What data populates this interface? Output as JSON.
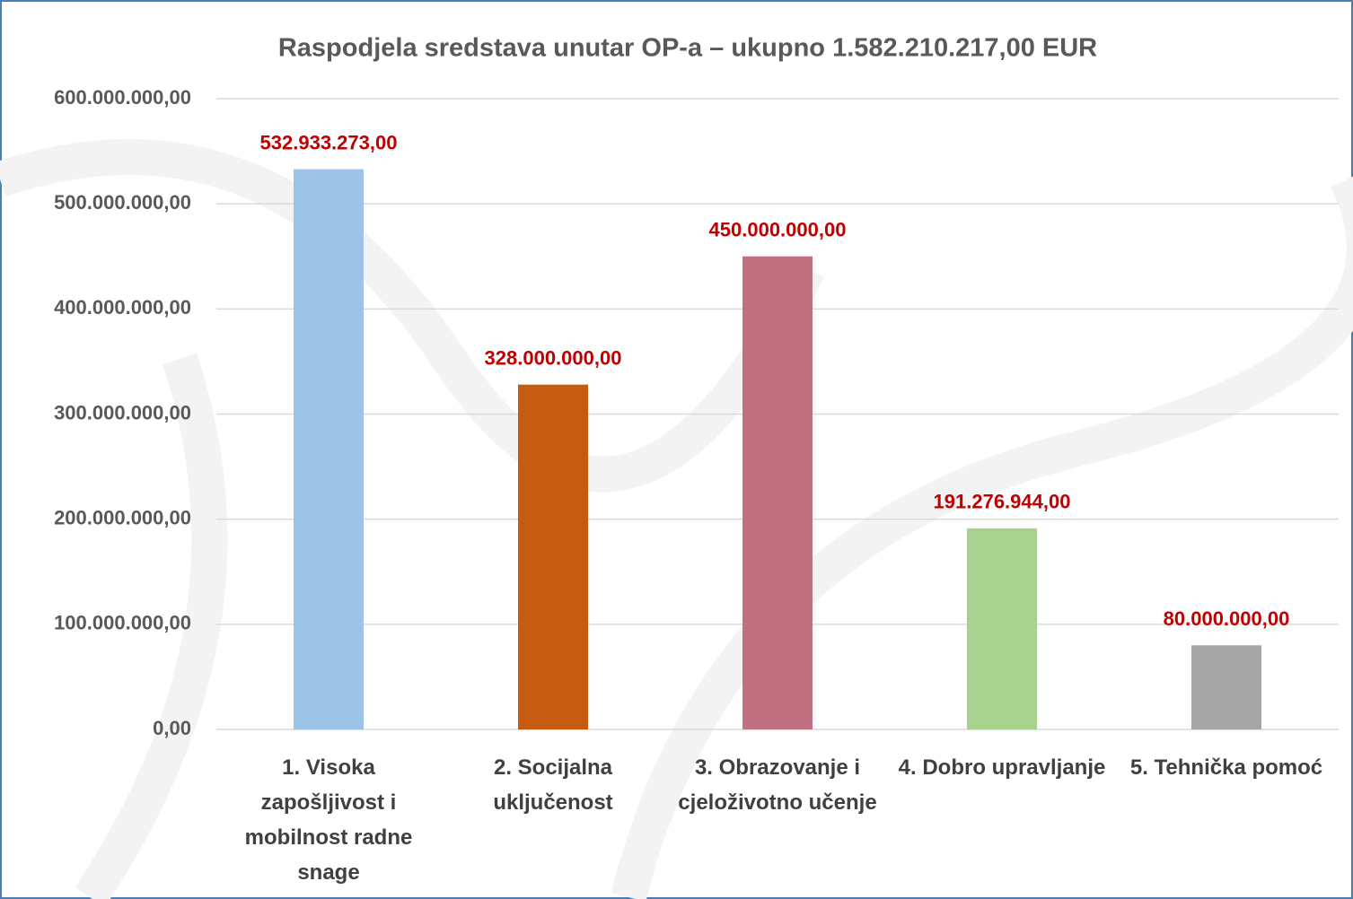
{
  "chart_data": {
    "type": "bar",
    "title": "Raspodjela sredstava unutar OP-a – ukupno 1.582.210.217,00 EUR",
    "categories": [
      "1. Visoka zapošljivost i mobilnost radne snage",
      "2. Socijalna uključenost",
      "3. Obrazovanje i cjeloživotno učenje",
      "4. Dobro upravljanje",
      "5. Tehnička pomoć"
    ],
    "values": [
      532933273,
      328000000,
      450000000,
      191276944,
      80000000
    ],
    "value_labels": [
      "532.933.273,00",
      "328.000.000,00",
      "450.000.000,00",
      "191.276.944,00",
      "80.000.000,00"
    ],
    "colors": [
      "#9dc3e6",
      "#c55a11",
      "#c07080",
      "#a9d18e",
      "#a5a5a5"
    ],
    "value_label_color": "#c00000",
    "ylim": [
      0,
      600000000
    ],
    "yticks": [
      {
        "value": 0,
        "label": "0,00"
      },
      {
        "value": 100000000,
        "label": "100.000.000,00"
      },
      {
        "value": 200000000,
        "label": "200.000.000,00"
      },
      {
        "value": 300000000,
        "label": "300.000.000,00"
      },
      {
        "value": 400000000,
        "label": "400.000.000,00"
      },
      {
        "value": 500000000,
        "label": "500.000.000,00"
      },
      {
        "value": 600000000,
        "label": "600.000.000,00"
      }
    ],
    "grid": true
  }
}
